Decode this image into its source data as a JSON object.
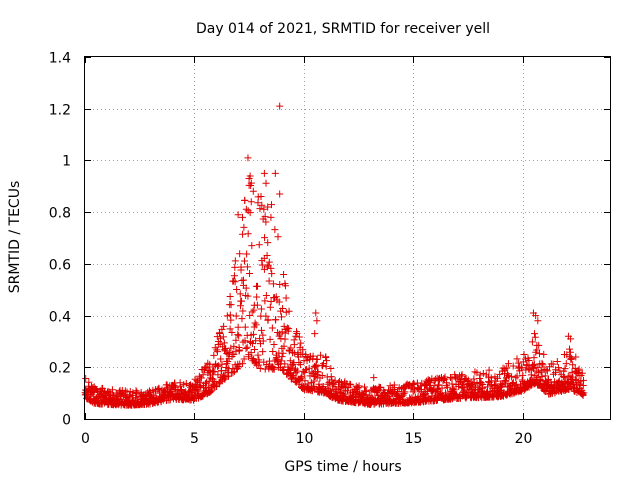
{
  "chart_data": {
    "type": "scatter",
    "title": "Day 014 of 2021, SRMTID for receiver yell",
    "xlabel": "GPS time / hours",
    "ylabel": "SRMTID / TECUs",
    "xlim": [
      0,
      24
    ],
    "ylim": [
      0,
      1.4
    ],
    "xticks": [
      0,
      5,
      10,
      15,
      20
    ],
    "xtick_labels": [
      "0",
      "5",
      "10",
      "15",
      "20"
    ],
    "yticks": [
      0,
      0.2,
      0.4,
      0.6,
      0.8,
      1,
      1.2,
      1.4
    ],
    "ytick_labels": [
      "0",
      "0.2",
      "0.4",
      "0.6",
      "0.8",
      "1",
      "1.2",
      "1.4"
    ],
    "grid": true,
    "marker": "+",
    "color": "#e00000",
    "x_data_extent": [
      0,
      22.8
    ],
    "profile": [
      {
        "x": 0.0,
        "base": 0.1,
        "spread": 0.05
      },
      {
        "x": 0.5,
        "base": 0.07,
        "spread": 0.04
      },
      {
        "x": 1.0,
        "base": 0.07,
        "spread": 0.04
      },
      {
        "x": 2.0,
        "base": 0.065,
        "spread": 0.035
      },
      {
        "x": 3.0,
        "base": 0.07,
        "spread": 0.035
      },
      {
        "x": 4.0,
        "base": 0.09,
        "spread": 0.04
      },
      {
        "x": 5.0,
        "base": 0.09,
        "spread": 0.05
      },
      {
        "x": 5.7,
        "base": 0.13,
        "spread": 0.08
      },
      {
        "x": 6.3,
        "base": 0.2,
        "spread": 0.15
      },
      {
        "x": 7.0,
        "base": 0.3,
        "spread": 0.3
      },
      {
        "x": 7.5,
        "base": 0.4,
        "spread": 0.45
      },
      {
        "x": 8.0,
        "base": 0.35,
        "spread": 0.45
      },
      {
        "x": 8.5,
        "base": 0.35,
        "spread": 0.45
      },
      {
        "x": 9.0,
        "base": 0.28,
        "spread": 0.25
      },
      {
        "x": 9.5,
        "base": 0.2,
        "spread": 0.15
      },
      {
        "x": 10.0,
        "base": 0.15,
        "spread": 0.1
      },
      {
        "x": 11.0,
        "base": 0.13,
        "spread": 0.09
      },
      {
        "x": 11.5,
        "base": 0.09,
        "spread": 0.05
      },
      {
        "x": 13.0,
        "base": 0.07,
        "spread": 0.04
      },
      {
        "x": 15.0,
        "base": 0.08,
        "spread": 0.05
      },
      {
        "x": 17.0,
        "base": 0.1,
        "spread": 0.06
      },
      {
        "x": 19.0,
        "base": 0.11,
        "spread": 0.07
      },
      {
        "x": 20.0,
        "base": 0.14,
        "spread": 0.09
      },
      {
        "x": 20.6,
        "base": 0.18,
        "spread": 0.12
      },
      {
        "x": 21.2,
        "base": 0.12,
        "spread": 0.07
      },
      {
        "x": 22.2,
        "base": 0.15,
        "spread": 0.1
      },
      {
        "x": 22.8,
        "base": 0.11,
        "spread": 0.06
      }
    ],
    "notable_points": [
      {
        "x": 8.9,
        "y": 1.21
      },
      {
        "x": 7.45,
        "y": 1.01
      },
      {
        "x": 7.55,
        "y": 0.94
      },
      {
        "x": 7.5,
        "y": 0.93
      },
      {
        "x": 8.2,
        "y": 0.95
      },
      {
        "x": 8.7,
        "y": 0.95
      },
      {
        "x": 8.9,
        "y": 0.87
      },
      {
        "x": 8.35,
        "y": 0.82
      },
      {
        "x": 7.0,
        "y": 0.79
      },
      {
        "x": 7.2,
        "y": 0.78
      },
      {
        "x": 7.6,
        "y": 0.84
      },
      {
        "x": 8.5,
        "y": 0.78
      },
      {
        "x": 10.55,
        "y": 0.41
      },
      {
        "x": 10.6,
        "y": 0.38
      },
      {
        "x": 10.5,
        "y": 0.33
      },
      {
        "x": 20.5,
        "y": 0.41
      },
      {
        "x": 20.6,
        "y": 0.4
      },
      {
        "x": 20.7,
        "y": 0.38
      },
      {
        "x": 20.55,
        "y": 0.33
      },
      {
        "x": 22.1,
        "y": 0.32
      },
      {
        "x": 22.2,
        "y": 0.31
      },
      {
        "x": 22.15,
        "y": 0.27
      },
      {
        "x": 13.2,
        "y": 0.16
      },
      {
        "x": 4.0,
        "y": 0.13
      }
    ]
  }
}
